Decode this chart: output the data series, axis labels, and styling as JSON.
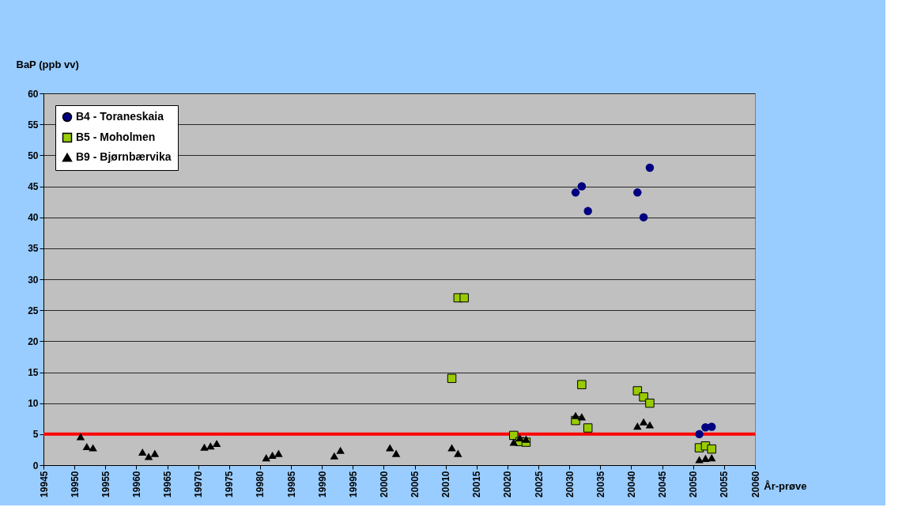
{
  "chart_data": {
    "type": "scatter",
    "xlabel": "År-prøve",
    "ylabel": "BaP (ppb vv)",
    "xlim": [
      19945,
      20060
    ],
    "xticks": [
      19945,
      19950,
      19955,
      19960,
      19965,
      19970,
      19975,
      19980,
      19985,
      19990,
      19995,
      20000,
      20005,
      20010,
      20015,
      20020,
      20025,
      20030,
      20035,
      20040,
      20045,
      20050,
      20055,
      20060
    ],
    "ylim": [
      0,
      60
    ],
    "yticks": [
      0,
      5,
      10,
      15,
      20,
      25,
      30,
      35,
      40,
      45,
      50,
      55,
      60
    ],
    "grid": "y",
    "legend": "top left",
    "series": [
      {
        "name": "B4 - Toraneskaia",
        "color": "#000080",
        "marker": "circle",
        "x": [
          20031,
          20032,
          20033,
          20041,
          20042,
          20043,
          20051,
          20052,
          20053
        ],
        "values": [
          44,
          45,
          41,
          44,
          40,
          48,
          5,
          6.1,
          6.2
        ]
      },
      {
        "name": "B5 - Moholmen",
        "color": "#99cc00",
        "marker": "square",
        "x": [
          20011,
          20012,
          20013,
          20021,
          20022,
          20023,
          20031,
          20032,
          20033,
          20041,
          20042,
          20043,
          20051,
          20052,
          20053
        ],
        "values": [
          14,
          27,
          27,
          4.8,
          3.8,
          3.7,
          7.2,
          13,
          6,
          12,
          11,
          10,
          2.8,
          3.1,
          2.6
        ]
      },
      {
        "name": "B9 - Bjørnbærvika",
        "color": "#000000",
        "marker": "triangle",
        "x": [
          19951,
          19952,
          19953,
          19961,
          19962,
          19963,
          19971,
          19972,
          19973,
          19981,
          19982,
          19983,
          19992,
          19993,
          20001,
          20002,
          20011,
          20012,
          20021,
          20022,
          20023,
          20031,
          20032,
          20041,
          20042,
          20043,
          20051,
          20052,
          20053
        ],
        "values": [
          4.6,
          3.0,
          2.8,
          2.1,
          1.4,
          1.9,
          2.9,
          3.1,
          3.5,
          1.2,
          1.6,
          1.9,
          1.5,
          2.4,
          2.8,
          1.9,
          2.8,
          1.9,
          3.7,
          4.4,
          4.2,
          8.0,
          7.8,
          6.3,
          7.0,
          6.5,
          0.9,
          1.1,
          1.2
        ]
      }
    ],
    "ref_lines": [
      {
        "axis": "y",
        "value": 5,
        "color": "#ff0000"
      }
    ]
  }
}
